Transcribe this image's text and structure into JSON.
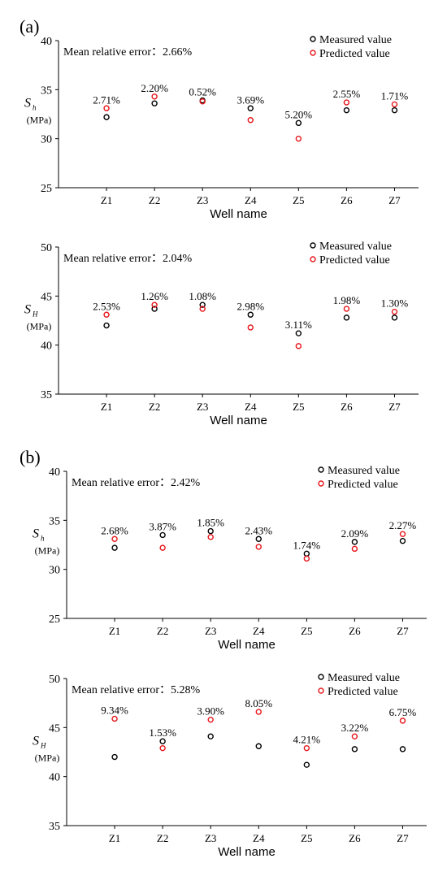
{
  "panels": [
    {
      "label": "(a)"
    },
    {
      "label": "(b)"
    }
  ],
  "chart_data": [
    {
      "type": "scatter",
      "panel": "(a)",
      "categories": [
        "Z1",
        "Z2",
        "Z3",
        "Z4",
        "Z5",
        "Z6",
        "Z7"
      ],
      "xlabel": "Well name",
      "ylabel_main": "S",
      "ylabel_sub": "h",
      "ylabel_unit": "(MPa)",
      "ylim": [
        25,
        40
      ],
      "yticks": [
        "25",
        "30",
        "35",
        "40"
      ],
      "annotation": "Mean relative error：2.66%",
      "legend": [
        "Measured value",
        "Predicted value"
      ],
      "legend_position": "top-right",
      "grid": false,
      "series": [
        {
          "name": "Measured value",
          "color": "#000000",
          "values": [
            32.2,
            33.6,
            33.9,
            33.1,
            31.6,
            32.9,
            32.9
          ]
        },
        {
          "name": "Predicted value",
          "color": "#e8161b",
          "values": [
            33.1,
            34.3,
            33.8,
            31.9,
            30.0,
            33.7,
            33.5
          ]
        }
      ],
      "point_labels": [
        "2.71%",
        "2.20%",
        "0.52%",
        "3.69%",
        "5.20%",
        "2.55%",
        "1.71%"
      ]
    },
    {
      "type": "scatter",
      "panel": "(a)",
      "categories": [
        "Z1",
        "Z2",
        "Z3",
        "Z4",
        "Z5",
        "Z6",
        "Z7"
      ],
      "xlabel": "Well name",
      "ylabel_main": "S",
      "ylabel_sub": "H",
      "ylabel_unit": "(MPa)",
      "ylim": [
        35,
        50
      ],
      "yticks": [
        "35",
        "40",
        "45",
        "50"
      ],
      "annotation": "Mean relative error：2.04%",
      "legend": [
        "Measured value",
        "Predicted value"
      ],
      "legend_position": "top-right",
      "grid": false,
      "series": [
        {
          "name": "Measured value",
          "color": "#000000",
          "values": [
            42.0,
            43.7,
            44.1,
            43.1,
            41.2,
            42.8,
            42.8
          ]
        },
        {
          "name": "Predicted value",
          "color": "#e8161b",
          "values": [
            43.1,
            44.1,
            43.7,
            41.8,
            39.9,
            43.7,
            43.4
          ]
        }
      ],
      "point_labels": [
        "2.53%",
        "1.26%",
        "1.08%",
        "2.98%",
        "3.11%",
        "1.98%",
        "1.30%"
      ]
    },
    {
      "type": "scatter",
      "panel": "(b)",
      "categories": [
        "Z1",
        "Z2",
        "Z3",
        "Z4",
        "Z5",
        "Z6",
        "Z7"
      ],
      "xlabel": "Well name",
      "ylabel_main": "S",
      "ylabel_sub": "h",
      "ylabel_unit": "(MPa)",
      "ylim": [
        25,
        40
      ],
      "yticks": [
        "25",
        "30",
        "35",
        "40"
      ],
      "annotation": "Mean relative error：2.42%",
      "legend": [
        "Measured value",
        "Predicted value"
      ],
      "legend_position": "top-right",
      "grid": false,
      "series": [
        {
          "name": "Measured value",
          "color": "#000000",
          "values": [
            32.2,
            33.5,
            33.9,
            33.1,
            31.6,
            32.8,
            32.9
          ]
        },
        {
          "name": "Predicted value",
          "color": "#e8161b",
          "values": [
            33.1,
            32.2,
            33.3,
            32.3,
            31.1,
            32.1,
            33.6
          ]
        }
      ],
      "point_labels": [
        "2.68%",
        "3.87%",
        "1.85%",
        "2.43%",
        "1.74%",
        "2.09%",
        "2.27%"
      ]
    },
    {
      "type": "scatter",
      "panel": "(b)",
      "categories": [
        "Z1",
        "Z2",
        "Z3",
        "Z4",
        "Z5",
        "Z6",
        "Z7"
      ],
      "xlabel": "Well name",
      "ylabel_main": "S",
      "ylabel_sub": "H",
      "ylabel_unit": "(MPa)",
      "ylim": [
        35,
        50
      ],
      "yticks": [
        "35",
        "40",
        "45",
        "50"
      ],
      "annotation": "Mean relative error：5.28%",
      "legend": [
        "Measured value",
        "Predicted value"
      ],
      "legend_position": "top-right",
      "grid": false,
      "series": [
        {
          "name": "Measured value",
          "color": "#000000",
          "values": [
            42.0,
            43.6,
            44.1,
            43.1,
            41.2,
            42.8,
            42.8
          ]
        },
        {
          "name": "Predicted value",
          "color": "#e8161b",
          "values": [
            45.9,
            42.9,
            45.8,
            46.6,
            42.9,
            44.1,
            45.7
          ]
        }
      ],
      "point_labels": [
        "9.34%",
        "1.53%",
        "3.90%",
        "8.05%",
        "4.21%",
        "3.22%",
        "6.75%"
      ]
    }
  ]
}
